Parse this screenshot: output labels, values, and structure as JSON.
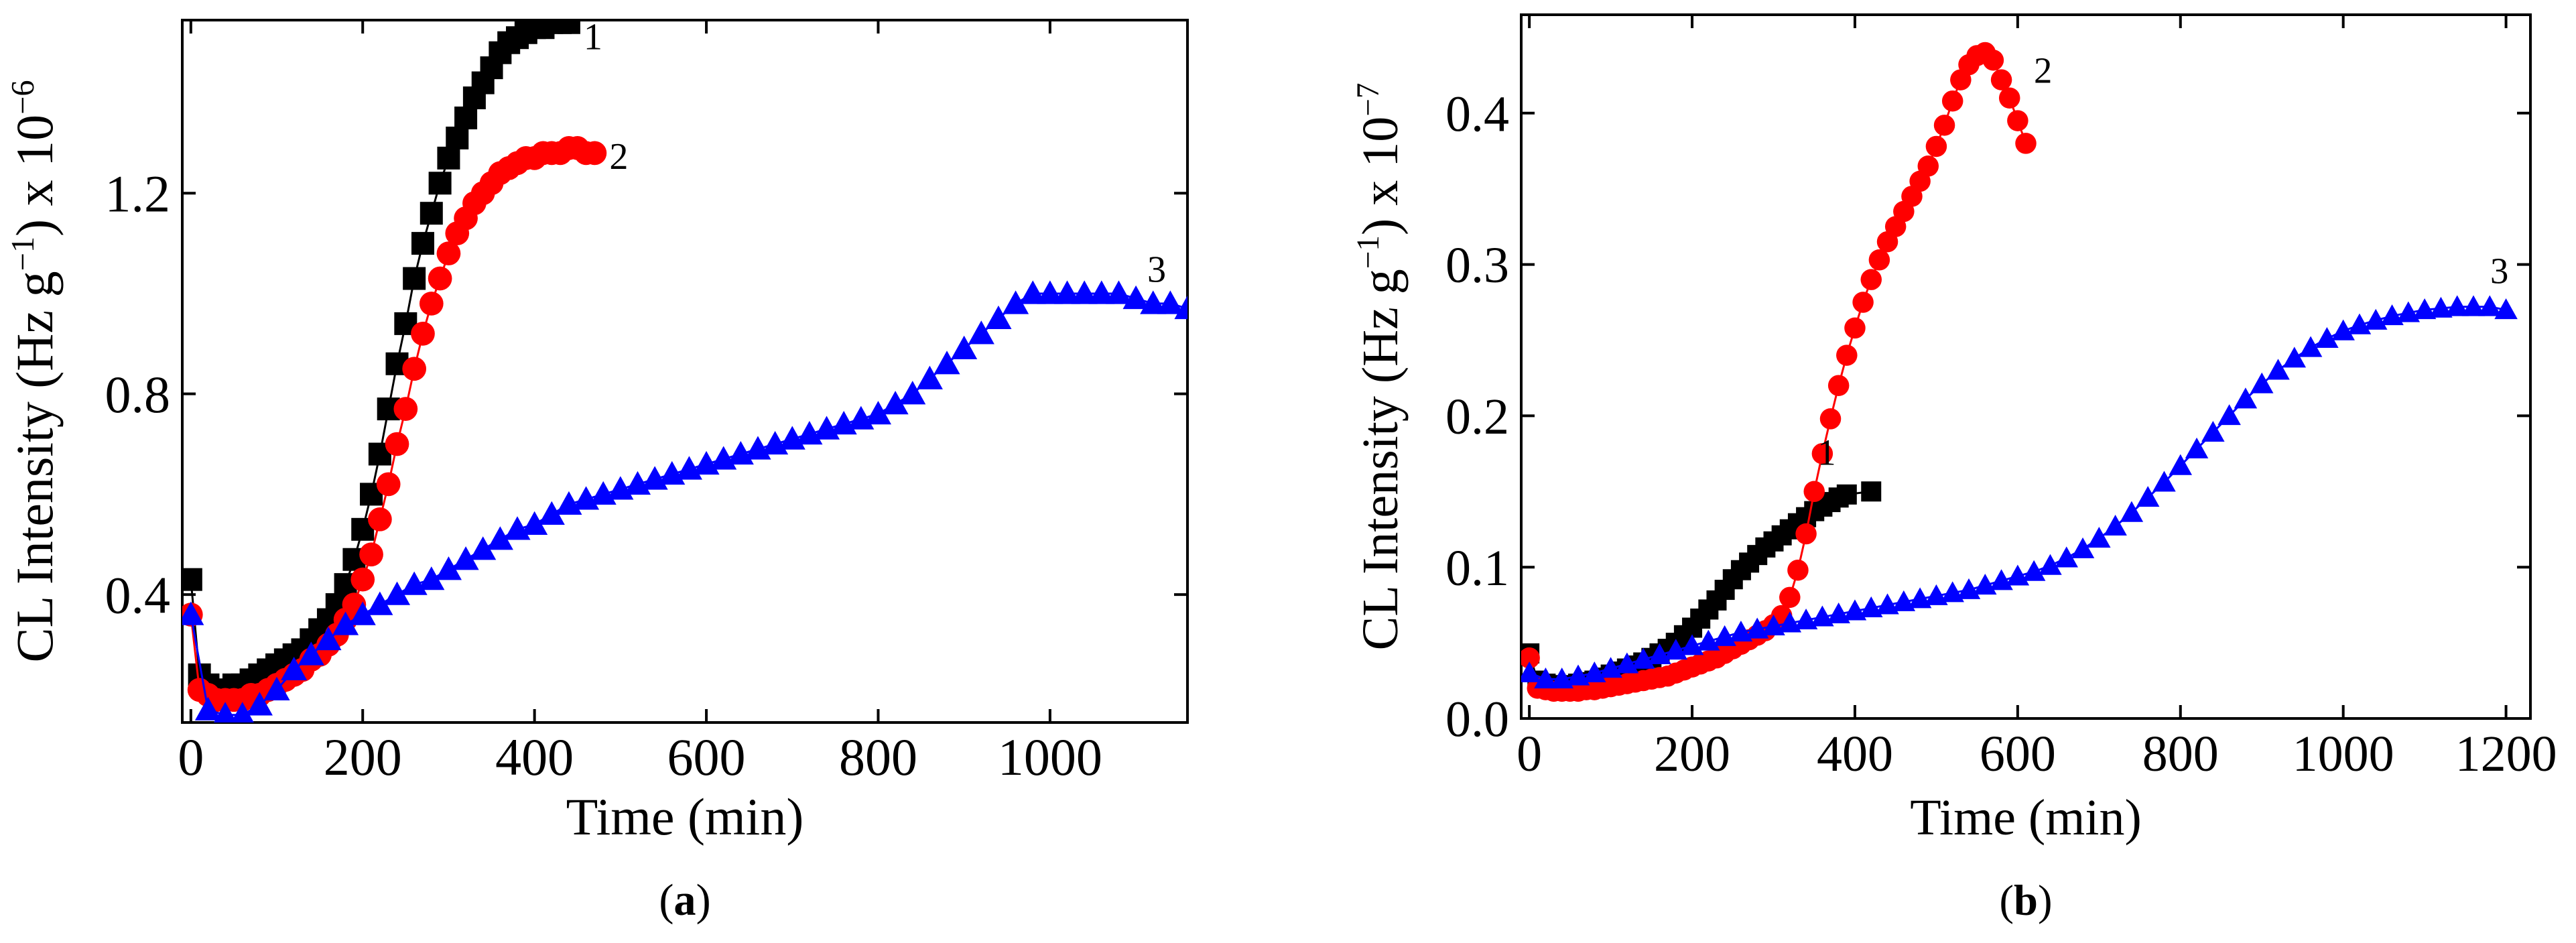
{
  "chart_data": [
    {
      "type": "scatter",
      "panel_label": "(a)",
      "panel_letter": "a",
      "xlabel": "Time (min)",
      "ylabel": "CL Intensity (Hz g",
      "ylabel_sup": "−1",
      "ylabel_tail": ") x 10",
      "ylabel_exp": "−6",
      "xlim": [
        -10,
        1160
      ],
      "ylim": [
        0.145,
        1.545
      ],
      "xticks": [
        0,
        200,
        400,
        600,
        800,
        1000
      ],
      "xtick_labels": [
        "0",
        "200",
        "400",
        "600",
        "800",
        "1000"
      ],
      "yticks": [
        0.4,
        0.8,
        1.2
      ],
      "ytick_labels": [
        "0.4",
        "0.8",
        "1.2"
      ],
      "grid": false,
      "series": [
        {
          "name": "1",
          "marker": "square",
          "color": "#000000",
          "x": [
            0,
            10,
            20,
            30,
            40,
            50,
            60,
            70,
            80,
            90,
            100,
            110,
            120,
            130,
            140,
            150,
            160,
            170,
            180,
            190,
            200,
            210,
            220,
            230,
            240,
            250,
            260,
            270,
            280,
            290,
            300,
            310,
            320,
            330,
            340,
            350,
            360,
            370,
            380,
            390,
            400,
            410,
            420,
            430,
            440
          ],
          "y": [
            0.43,
            0.24,
            0.22,
            0.21,
            0.21,
            0.22,
            0.22,
            0.23,
            0.24,
            0.25,
            0.26,
            0.27,
            0.28,
            0.29,
            0.31,
            0.33,
            0.35,
            0.38,
            0.42,
            0.47,
            0.53,
            0.6,
            0.68,
            0.77,
            0.86,
            0.94,
            1.03,
            1.1,
            1.16,
            1.22,
            1.27,
            1.31,
            1.35,
            1.39,
            1.42,
            1.45,
            1.48,
            1.5,
            1.51,
            1.52,
            1.53,
            1.53,
            1.54,
            1.54,
            1.54
          ]
        },
        {
          "name": "2",
          "marker": "circle",
          "color": "#ff0000",
          "x": [
            0,
            10,
            20,
            30,
            40,
            50,
            60,
            70,
            80,
            90,
            100,
            110,
            120,
            130,
            140,
            150,
            160,
            170,
            180,
            190,
            200,
            210,
            220,
            230,
            240,
            250,
            260,
            270,
            280,
            290,
            300,
            310,
            320,
            330,
            340,
            350,
            360,
            370,
            380,
            390,
            400,
            410,
            420,
            430,
            440,
            450,
            460,
            470
          ],
          "y": [
            0.36,
            0.21,
            0.2,
            0.19,
            0.19,
            0.19,
            0.19,
            0.2,
            0.2,
            0.21,
            0.22,
            0.23,
            0.24,
            0.25,
            0.27,
            0.28,
            0.3,
            0.32,
            0.35,
            0.38,
            0.43,
            0.48,
            0.55,
            0.62,
            0.7,
            0.77,
            0.85,
            0.92,
            0.98,
            1.03,
            1.08,
            1.12,
            1.15,
            1.18,
            1.2,
            1.22,
            1.24,
            1.25,
            1.26,
            1.27,
            1.27,
            1.28,
            1.28,
            1.28,
            1.29,
            1.29,
            1.28,
            1.28
          ]
        },
        {
          "name": "3",
          "marker": "triangle",
          "color": "#0000ff",
          "x": [
            0,
            20,
            40,
            60,
            80,
            100,
            120,
            140,
            160,
            180,
            200,
            220,
            240,
            260,
            280,
            300,
            320,
            340,
            360,
            380,
            400,
            420,
            440,
            460,
            480,
            500,
            520,
            540,
            560,
            580,
            600,
            620,
            640,
            660,
            680,
            700,
            720,
            740,
            760,
            780,
            800,
            820,
            840,
            860,
            880,
            900,
            920,
            940,
            960,
            980,
            1000,
            1020,
            1040,
            1060,
            1080,
            1100,
            1120,
            1140,
            1160
          ],
          "y": [
            0.36,
            0.17,
            0.16,
            0.16,
            0.18,
            0.21,
            0.25,
            0.28,
            0.31,
            0.34,
            0.36,
            0.38,
            0.4,
            0.42,
            0.43,
            0.45,
            0.47,
            0.49,
            0.51,
            0.53,
            0.54,
            0.56,
            0.58,
            0.59,
            0.6,
            0.61,
            0.62,
            0.63,
            0.64,
            0.65,
            0.66,
            0.67,
            0.68,
            0.69,
            0.7,
            0.71,
            0.72,
            0.73,
            0.74,
            0.75,
            0.76,
            0.78,
            0.8,
            0.83,
            0.86,
            0.89,
            0.92,
            0.95,
            0.98,
            1.0,
            1.0,
            1.0,
            1.0,
            1.0,
            1.0,
            0.99,
            0.98,
            0.98,
            0.97
          ]
        }
      ]
    },
    {
      "type": "scatter",
      "panel_label": "(b)",
      "panel_letter": "b",
      "xlabel": "Time (min)",
      "ylabel": "CL Intensity (Hz g",
      "ylabel_sup": "−1",
      "ylabel_tail": ") x 10",
      "ylabel_exp": "−7",
      "xlim": [
        -10,
        1230
      ],
      "ylim": [
        0,
        0.465
      ],
      "xticks": [
        0,
        200,
        400,
        600,
        800,
        1000,
        1200
      ],
      "xtick_labels": [
        "0",
        "200",
        "400",
        "600",
        "800",
        "1000",
        "1200"
      ],
      "yticks": [
        0.0,
        0.1,
        0.2,
        0.3,
        0.4
      ],
      "ytick_labels": [
        "0.0",
        "0.1",
        "0.2",
        "0.3",
        "0.4"
      ],
      "grid": false,
      "series": [
        {
          "name": "1",
          "marker": "square",
          "color": "#000000",
          "x": [
            0,
            10,
            20,
            30,
            40,
            50,
            60,
            70,
            80,
            90,
            100,
            110,
            120,
            130,
            140,
            150,
            160,
            170,
            180,
            190,
            200,
            210,
            220,
            230,
            240,
            250,
            260,
            270,
            280,
            290,
            300,
            310,
            320,
            330,
            340,
            350,
            360,
            370,
            380,
            390,
            420
          ],
          "y": [
            0.043,
            0.025,
            0.023,
            0.022,
            0.022,
            0.022,
            0.023,
            0.024,
            0.025,
            0.027,
            0.029,
            0.031,
            0.033,
            0.035,
            0.037,
            0.04,
            0.043,
            0.046,
            0.05,
            0.055,
            0.06,
            0.066,
            0.072,
            0.078,
            0.085,
            0.092,
            0.098,
            0.103,
            0.108,
            0.113,
            0.117,
            0.121,
            0.125,
            0.129,
            0.133,
            0.137,
            0.14,
            0.143,
            0.146,
            0.148,
            0.15
          ]
        },
        {
          "name": "2",
          "marker": "circle",
          "color": "#ff0000",
          "x": [
            0,
            10,
            20,
            30,
            40,
            50,
            60,
            70,
            80,
            90,
            100,
            110,
            120,
            130,
            140,
            150,
            160,
            170,
            180,
            190,
            200,
            210,
            220,
            230,
            240,
            250,
            260,
            270,
            280,
            290,
            300,
            310,
            320,
            330,
            340,
            350,
            360,
            370,
            380,
            390,
            400,
            410,
            420,
            430,
            440,
            450,
            460,
            470,
            480,
            490,
            500,
            510,
            520,
            530,
            540,
            550,
            560,
            570,
            580,
            590,
            600,
            610
          ],
          "y": [
            0.04,
            0.02,
            0.019,
            0.018,
            0.018,
            0.018,
            0.018,
            0.019,
            0.019,
            0.02,
            0.021,
            0.022,
            0.023,
            0.024,
            0.025,
            0.026,
            0.027,
            0.028,
            0.03,
            0.032,
            0.034,
            0.036,
            0.038,
            0.04,
            0.043,
            0.046,
            0.049,
            0.052,
            0.055,
            0.058,
            0.062,
            0.068,
            0.08,
            0.098,
            0.122,
            0.15,
            0.175,
            0.198,
            0.22,
            0.24,
            0.258,
            0.275,
            0.29,
            0.303,
            0.315,
            0.325,
            0.335,
            0.345,
            0.355,
            0.365,
            0.378,
            0.392,
            0.408,
            0.422,
            0.432,
            0.438,
            0.44,
            0.435,
            0.422,
            0.41,
            0.395,
            0.38
          ]
        },
        {
          "name": "3",
          "marker": "triangle",
          "color": "#0000ff",
          "x": [
            0,
            20,
            40,
            60,
            80,
            100,
            120,
            140,
            160,
            180,
            200,
            220,
            240,
            260,
            280,
            300,
            320,
            340,
            360,
            380,
            400,
            420,
            440,
            460,
            480,
            500,
            520,
            540,
            560,
            580,
            600,
            620,
            640,
            660,
            680,
            700,
            720,
            740,
            760,
            780,
            800,
            820,
            840,
            860,
            880,
            900,
            920,
            940,
            960,
            980,
            1000,
            1020,
            1040,
            1060,
            1080,
            1100,
            1120,
            1140,
            1160,
            1180,
            1200
          ],
          "y": [
            0.03,
            0.026,
            0.026,
            0.028,
            0.03,
            0.033,
            0.036,
            0.039,
            0.042,
            0.045,
            0.048,
            0.051,
            0.054,
            0.057,
            0.059,
            0.061,
            0.063,
            0.065,
            0.067,
            0.069,
            0.071,
            0.073,
            0.075,
            0.077,
            0.079,
            0.081,
            0.083,
            0.085,
            0.088,
            0.091,
            0.094,
            0.097,
            0.101,
            0.106,
            0.112,
            0.119,
            0.127,
            0.136,
            0.146,
            0.156,
            0.167,
            0.178,
            0.189,
            0.2,
            0.211,
            0.221,
            0.23,
            0.238,
            0.245,
            0.251,
            0.256,
            0.26,
            0.263,
            0.266,
            0.268,
            0.27,
            0.271,
            0.272,
            0.272,
            0.272,
            0.27
          ]
        }
      ]
    }
  ]
}
